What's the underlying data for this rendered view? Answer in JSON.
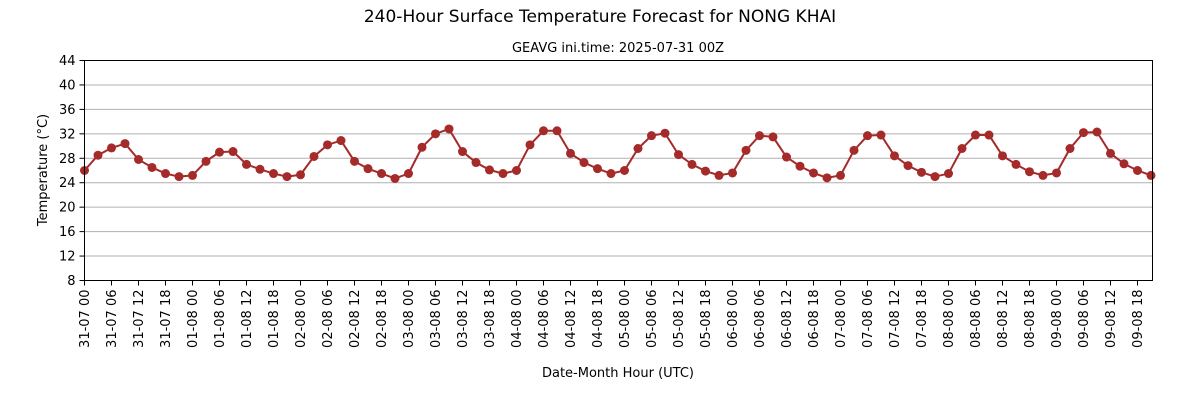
{
  "chart_data": {
    "type": "line",
    "title": "240-Hour Surface Temperature Forecast for NONG KHAI",
    "subtitle": "GEAVG ini.time: 2025-07-31 00Z",
    "xlabel": "Date-Month Hour (UTC)",
    "ylabel": "Temperature (°C)",
    "ylim": [
      8,
      44
    ],
    "yticks": [
      8,
      12,
      16,
      20,
      24,
      28,
      32,
      36,
      40,
      44
    ],
    "grid": "horizontal",
    "x_step_hours": 3,
    "x_tick_every": 2,
    "color": "#a52a2a",
    "x": [
      "31-07 00",
      "31-07 03",
      "31-07 06",
      "31-07 09",
      "31-07 12",
      "31-07 15",
      "31-07 18",
      "31-07 21",
      "01-08 00",
      "01-08 03",
      "01-08 06",
      "01-08 09",
      "01-08 12",
      "01-08 15",
      "01-08 18",
      "01-08 21",
      "02-08 00",
      "02-08 03",
      "02-08 06",
      "02-08 09",
      "02-08 12",
      "02-08 15",
      "02-08 18",
      "02-08 21",
      "03-08 00",
      "03-08 03",
      "03-08 06",
      "03-08 09",
      "03-08 12",
      "03-08 15",
      "03-08 18",
      "03-08 21",
      "04-08 00",
      "04-08 03",
      "04-08 06",
      "04-08 09",
      "04-08 12",
      "04-08 15",
      "04-08 18",
      "04-08 21",
      "05-08 00",
      "05-08 03",
      "05-08 06",
      "05-08 09",
      "05-08 12",
      "05-08 15",
      "05-08 18",
      "05-08 21",
      "06-08 00",
      "06-08 03",
      "06-08 06",
      "06-08 09",
      "06-08 12",
      "06-08 15",
      "06-08 18",
      "06-08 21",
      "07-08 00",
      "07-08 03",
      "07-08 06",
      "07-08 09",
      "07-08 12",
      "07-08 15",
      "07-08 18",
      "07-08 21",
      "08-08 00",
      "08-08 03",
      "08-08 06",
      "08-08 09",
      "08-08 12",
      "08-08 15",
      "08-08 18",
      "08-08 21",
      "09-08 00",
      "09-08 03",
      "09-08 06",
      "09-08 09",
      "09-08 12",
      "09-08 15",
      "09-08 18",
      "09-08 21"
    ],
    "series": [
      {
        "values": [
          26.0,
          28.5,
          29.7,
          30.4,
          27.8,
          26.5,
          25.5,
          25.0,
          25.2,
          27.5,
          29.0,
          29.1,
          27.0,
          26.2,
          25.5,
          25.0,
          25.3,
          28.3,
          30.2,
          30.9,
          27.5,
          26.3,
          25.5,
          24.7,
          25.5,
          29.8,
          32.0,
          32.8,
          29.1,
          27.3,
          26.1,
          25.5,
          26.0,
          30.2,
          32.5,
          32.5,
          28.8,
          27.3,
          26.3,
          25.5,
          26.0,
          29.6,
          31.7,
          32.1,
          28.6,
          27.0,
          25.9,
          25.2,
          25.6,
          29.3,
          31.7,
          31.5,
          28.2,
          26.7,
          25.6,
          24.8,
          25.2,
          29.3,
          31.7,
          31.8,
          28.4,
          26.8,
          25.7,
          25.0,
          25.5,
          29.6,
          31.8,
          31.8,
          28.4,
          27.0,
          25.8,
          25.2,
          25.6,
          29.6,
          32.2,
          32.3,
          28.8,
          27.1,
          26.0,
          25.2
        ]
      }
    ]
  }
}
